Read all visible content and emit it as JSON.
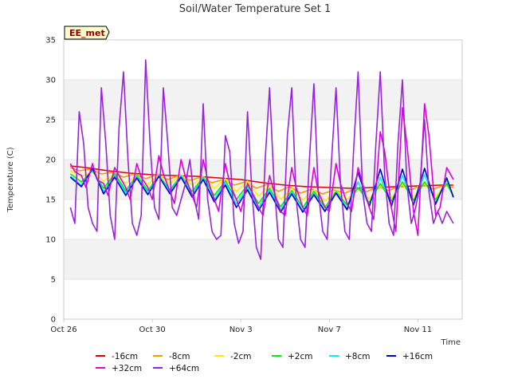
{
  "chart_data": {
    "type": "line",
    "title": "Soil/Water Temperature Set 1",
    "site_label": "EE_met",
    "xlabel": "Time",
    "ylabel": "Temperature (C)",
    "ylim": [
      0,
      35
    ],
    "xlim": [
      0,
      18
    ],
    "yticks": [
      0,
      5,
      10,
      15,
      20,
      25,
      30,
      35
    ],
    "xticks": [
      {
        "value": 0,
        "label": "Oct 26"
      },
      {
        "value": 4,
        "label": "Oct 30"
      },
      {
        "value": 8,
        "label": "Nov 3"
      },
      {
        "value": 12,
        "label": "Nov 7"
      },
      {
        "value": 16,
        "label": "Nov 11"
      }
    ],
    "x_units": "days since Oct 26",
    "grid": "horizontal alternating bands",
    "legend_position": "bottom",
    "series": [
      {
        "name": "-16cm",
        "color": "#dd0000",
        "x": [
          0.3,
          1,
          2,
          3,
          4,
          5,
          6,
          7,
          8,
          9,
          10,
          11,
          12,
          13,
          14,
          15,
          16,
          17,
          17.6
        ],
        "y": [
          19.2,
          19.0,
          18.6,
          18.3,
          18.1,
          18.0,
          17.9,
          17.7,
          17.5,
          17.1,
          16.8,
          16.6,
          16.5,
          16.4,
          16.5,
          16.6,
          16.7,
          16.8,
          16.8
        ]
      },
      {
        "name": "-8cm",
        "color": "#ff9900",
        "x": [
          0.3,
          0.7,
          1.2,
          1.7,
          2.2,
          2.7,
          3.2,
          3.7,
          4.2,
          4.7,
          5.2,
          5.7,
          6.2,
          6.7,
          7.2,
          7.7,
          8.2,
          8.7,
          9.2,
          9.7,
          10.2,
          10.7,
          11.2,
          11.7,
          12.2,
          12.7,
          13.2,
          13.7,
          14.2,
          14.7,
          15.2,
          15.7,
          16.2,
          16.7,
          17.2,
          17.6
        ],
        "y": [
          19.0,
          18.6,
          18.8,
          18.2,
          18.4,
          17.8,
          18.2,
          17.6,
          18.1,
          17.5,
          18.0,
          17.4,
          17.8,
          17.1,
          17.5,
          16.8,
          17.2,
          16.4,
          16.9,
          16.0,
          16.6,
          15.8,
          16.3,
          15.7,
          16.2,
          15.8,
          16.4,
          16.0,
          16.6,
          16.1,
          16.8,
          16.2,
          16.9,
          16.3,
          16.8,
          16.5
        ]
      },
      {
        "name": "-2cm",
        "color": "#ffee00",
        "x": [
          0.3,
          0.8,
          1.3,
          1.8,
          2.3,
          2.8,
          3.3,
          3.8,
          4.3,
          4.8,
          5.3,
          5.8,
          6.3,
          6.8,
          7.3,
          7.8,
          8.3,
          8.8,
          9.3,
          9.8,
          10.3,
          10.8,
          11.3,
          11.8,
          12.3,
          12.8,
          13.3,
          13.8,
          14.3,
          14.8,
          15.3,
          15.8,
          16.3,
          16.8,
          17.3,
          17.6
        ],
        "y": [
          18.6,
          17.9,
          18.5,
          17.3,
          18.2,
          17.0,
          18.0,
          16.9,
          18.0,
          17.0,
          18.1,
          16.8,
          17.9,
          16.4,
          17.6,
          16.0,
          17.3,
          15.4,
          16.8,
          15.0,
          16.4,
          14.9,
          16.2,
          14.8,
          16.1,
          15.0,
          16.4,
          15.1,
          16.7,
          15.2,
          16.9,
          15.3,
          17.0,
          15.4,
          16.9,
          15.8
        ]
      },
      {
        "name": "+2cm",
        "color": "#00ee00",
        "x": [
          0.3,
          0.8,
          1.3,
          1.8,
          2.3,
          2.8,
          3.3,
          3.8,
          4.3,
          4.8,
          5.3,
          5.8,
          6.3,
          6.8,
          7.3,
          7.8,
          8.3,
          8.8,
          9.3,
          9.8,
          10.3,
          10.8,
          11.3,
          11.8,
          12.3,
          12.8,
          13.3,
          13.8,
          14.3,
          14.8,
          15.3,
          15.8,
          16.3,
          16.8,
          17.3,
          17.6
        ],
        "y": [
          18.2,
          17.2,
          18.6,
          16.4,
          18.2,
          16.1,
          18.0,
          16.1,
          18.0,
          16.2,
          18.0,
          16.0,
          17.8,
          15.5,
          17.3,
          15.0,
          16.8,
          14.5,
          16.4,
          14.1,
          16.1,
          14.0,
          16.0,
          14.0,
          16.0,
          14.3,
          16.5,
          14.6,
          17.0,
          14.8,
          17.2,
          14.9,
          17.2,
          15.0,
          17.0,
          15.4
        ]
      },
      {
        "name": "+8cm",
        "color": "#00eeee",
        "x": [
          0.3,
          0.8,
          1.3,
          1.8,
          2.3,
          2.8,
          3.3,
          3.8,
          4.3,
          4.8,
          5.3,
          5.8,
          6.3,
          6.8,
          7.3,
          7.8,
          8.3,
          8.8,
          9.3,
          9.8,
          10.3,
          10.8,
          11.3,
          11.8,
          12.3,
          12.8,
          13.3,
          13.8,
          14.3,
          14.8,
          15.3,
          15.8,
          16.3,
          16.8,
          17.3,
          17.6
        ],
        "y": [
          17.9,
          16.8,
          18.8,
          16.0,
          18.0,
          15.8,
          17.9,
          15.8,
          18.0,
          15.9,
          18.0,
          15.6,
          17.7,
          15.0,
          17.1,
          14.4,
          16.5,
          14.0,
          16.2,
          13.7,
          15.9,
          13.6,
          15.8,
          13.6,
          15.9,
          13.9,
          17.2,
          14.2,
          17.8,
          14.3,
          18.0,
          14.4,
          18.1,
          14.6,
          17.5,
          15.2
        ]
      },
      {
        "name": "+16cm",
        "color": "#0000cc",
        "x": [
          0.3,
          0.8,
          1.3,
          1.8,
          2.3,
          2.8,
          3.3,
          3.8,
          4.3,
          4.8,
          5.3,
          5.8,
          6.3,
          6.8,
          7.3,
          7.8,
          8.3,
          8.8,
          9.3,
          9.8,
          10.3,
          10.8,
          11.3,
          11.8,
          12.3,
          12.8,
          13.3,
          13.8,
          14.3,
          14.8,
          15.3,
          15.8,
          16.3,
          16.8,
          17.3,
          17.6
        ],
        "y": [
          17.8,
          16.6,
          18.9,
          15.7,
          17.8,
          15.5,
          17.7,
          15.6,
          17.9,
          15.7,
          17.8,
          15.3,
          17.5,
          14.7,
          16.8,
          14.0,
          16.2,
          13.6,
          15.9,
          13.4,
          15.7,
          13.4,
          15.6,
          13.5,
          15.8,
          13.7,
          18.4,
          14.1,
          18.8,
          14.1,
          18.8,
          14.3,
          18.9,
          14.4,
          17.7,
          15.3
        ]
      },
      {
        "name": "+32cm",
        "color": "#dd00dd",
        "x": [
          0.3,
          0.5,
          0.8,
          1.0,
          1.3,
          1.5,
          1.8,
          2.0,
          2.3,
          2.5,
          2.8,
          3.0,
          3.3,
          3.5,
          3.8,
          4.0,
          4.3,
          4.5,
          4.8,
          5.0,
          5.3,
          5.5,
          5.8,
          6.0,
          6.3,
          6.5,
          6.8,
          7.0,
          7.3,
          7.5,
          7.8,
          8.0,
          8.3,
          8.5,
          8.8,
          9.0,
          9.3,
          9.5,
          9.8,
          10.0,
          10.3,
          10.5,
          10.8,
          11.0,
          11.3,
          11.5,
          11.8,
          12.0,
          12.3,
          12.5,
          12.8,
          13.0,
          13.3,
          13.5,
          13.8,
          14.0,
          14.3,
          14.5,
          14.8,
          15.0,
          15.3,
          15.5,
          15.8,
          16.0,
          16.3,
          16.5,
          16.8,
          17.0,
          17.3,
          17.6
        ],
        "y": [
          19.5,
          18.5,
          18.0,
          16.5,
          19.5,
          17.5,
          17.0,
          15.5,
          19.0,
          18.0,
          16.5,
          15.0,
          19.5,
          17.8,
          16.5,
          15.0,
          20.5,
          18.2,
          16.0,
          14.5,
          20.0,
          17.8,
          15.5,
          14.0,
          20.0,
          17.5,
          15.0,
          13.5,
          19.5,
          17.0,
          15.0,
          13.5,
          17.0,
          16.0,
          14.0,
          13.0,
          18.0,
          16.0,
          13.5,
          13.0,
          19.0,
          16.5,
          14.0,
          13.0,
          19.0,
          16.0,
          14.0,
          13.5,
          19.5,
          17.0,
          14.5,
          13.5,
          19.0,
          17.0,
          14.0,
          12.5,
          23.5,
          21.0,
          14.0,
          11.0,
          26.5,
          22.0,
          13.5,
          10.5,
          27.0,
          23.0,
          13.0,
          14.0,
          19.0,
          17.5
        ]
      },
      {
        "name": "+64cm",
        "color": "#9922dd",
        "x": [
          0.3,
          0.5,
          0.7,
          0.9,
          1.1,
          1.3,
          1.5,
          1.7,
          1.9,
          2.1,
          2.3,
          2.5,
          2.7,
          2.9,
          3.1,
          3.3,
          3.5,
          3.7,
          3.9,
          4.1,
          4.3,
          4.5,
          4.7,
          4.9,
          5.1,
          5.3,
          5.5,
          5.7,
          5.9,
          6.1,
          6.3,
          6.5,
          6.7,
          6.9,
          7.1,
          7.3,
          7.5,
          7.7,
          7.9,
          8.1,
          8.3,
          8.5,
          8.7,
          8.9,
          9.1,
          9.3,
          9.5,
          9.7,
          9.9,
          10.1,
          10.3,
          10.5,
          10.7,
          10.9,
          11.1,
          11.3,
          11.5,
          11.7,
          11.9,
          12.1,
          12.3,
          12.5,
          12.7,
          12.9,
          13.1,
          13.3,
          13.5,
          13.7,
          13.9,
          14.1,
          14.3,
          14.5,
          14.7,
          14.9,
          15.1,
          15.3,
          15.5,
          15.7,
          15.9,
          16.1,
          16.3,
          16.5,
          16.7,
          16.9,
          17.1,
          17.3,
          17.6
        ],
        "y": [
          14.0,
          12.0,
          26.0,
          22.0,
          14.0,
          12.0,
          11.0,
          29.0,
          22.0,
          13.0,
          10.0,
          24.0,
          31.0,
          20.0,
          12.0,
          10.5,
          13.0,
          32.5,
          22.0,
          14.0,
          12.5,
          29.0,
          22.0,
          14.0,
          13.0,
          15.0,
          17.0,
          20.0,
          15.0,
          12.5,
          27.0,
          15.0,
          11.0,
          10.0,
          10.5,
          23.0,
          21.0,
          12.0,
          9.5,
          11.0,
          26.0,
          16.0,
          9.0,
          7.5,
          20.0,
          29.0,
          17.0,
          10.0,
          9.0,
          23.0,
          29.0,
          15.0,
          10.0,
          9.0,
          20.0,
          29.5,
          16.0,
          11.0,
          10.0,
          20.0,
          29.0,
          17.0,
          11.0,
          10.0,
          21.5,
          31.0,
          16.0,
          12.0,
          11.0,
          22.0,
          31.0,
          18.0,
          12.0,
          10.5,
          22.0,
          30.0,
          17.0,
          12.0,
          14.0,
          17.0,
          25.0,
          16.0,
          12.0,
          13.5,
          12.0,
          13.5,
          12.0
        ]
      }
    ]
  }
}
